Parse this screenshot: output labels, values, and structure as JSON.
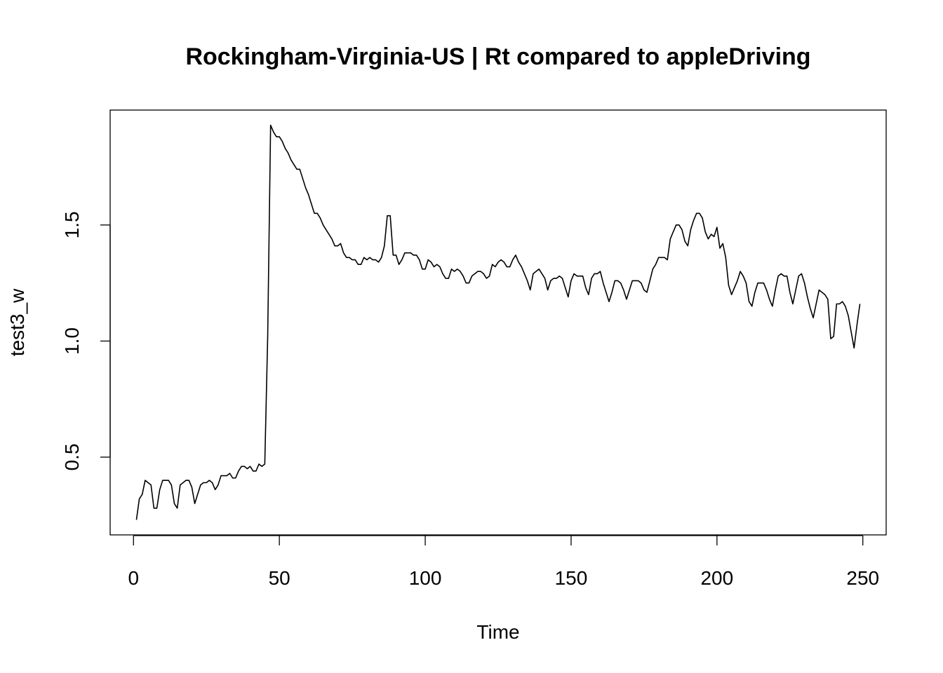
{
  "chart_data": {
    "type": "line",
    "title": "Rockingham-Virginia-US | Rt compared to appleDriving",
    "xlabel": "Time",
    "ylabel": "test3_w",
    "xlim": [
      -8,
      258
    ],
    "ylim": [
      0.165,
      1.995
    ],
    "grid": false,
    "x_ticks": [
      0,
      50,
      100,
      150,
      200,
      250
    ],
    "x_tick_labels": [
      "0",
      "50",
      "100",
      "150",
      "200",
      "250"
    ],
    "y_ticks": [
      0.5,
      1.0,
      1.5
    ],
    "y_tick_labels": [
      "0.5",
      "1.0",
      "1.5"
    ],
    "series": [
      {
        "x_start": 1,
        "values": [
          0.23,
          0.32,
          0.34,
          0.4,
          0.39,
          0.38,
          0.28,
          0.28,
          0.36,
          0.4,
          0.4,
          0.4,
          0.38,
          0.3,
          0.28,
          0.38,
          0.39,
          0.4,
          0.4,
          0.37,
          0.3,
          0.34,
          0.38,
          0.39,
          0.39,
          0.4,
          0.39,
          0.36,
          0.38,
          0.42,
          0.42,
          0.42,
          0.43,
          0.41,
          0.41,
          0.44,
          0.46,
          0.46,
          0.45,
          0.46,
          0.44,
          0.44,
          0.47,
          0.46,
          0.47,
          1.02,
          1.93,
          1.9,
          1.88,
          1.88,
          1.86,
          1.83,
          1.81,
          1.78,
          1.76,
          1.74,
          1.74,
          1.7,
          1.66,
          1.63,
          1.59,
          1.55,
          1.55,
          1.53,
          1.5,
          1.48,
          1.46,
          1.44,
          1.41,
          1.41,
          1.42,
          1.38,
          1.36,
          1.36,
          1.35,
          1.35,
          1.33,
          1.33,
          1.36,
          1.35,
          1.36,
          1.35,
          1.35,
          1.34,
          1.36,
          1.41,
          1.54,
          1.54,
          1.37,
          1.37,
          1.33,
          1.35,
          1.38,
          1.38,
          1.38,
          1.37,
          1.37,
          1.35,
          1.31,
          1.31,
          1.35,
          1.34,
          1.32,
          1.33,
          1.32,
          1.29,
          1.27,
          1.27,
          1.31,
          1.3,
          1.31,
          1.3,
          1.28,
          1.25,
          1.25,
          1.28,
          1.29,
          1.3,
          1.3,
          1.29,
          1.27,
          1.28,
          1.33,
          1.32,
          1.34,
          1.35,
          1.34,
          1.32,
          1.32,
          1.35,
          1.37,
          1.34,
          1.32,
          1.29,
          1.26,
          1.22,
          1.29,
          1.3,
          1.31,
          1.29,
          1.27,
          1.22,
          1.26,
          1.27,
          1.27,
          1.28,
          1.27,
          1.23,
          1.19,
          1.26,
          1.29,
          1.28,
          1.28,
          1.28,
          1.23,
          1.2,
          1.27,
          1.29,
          1.29,
          1.3,
          1.25,
          1.21,
          1.17,
          1.21,
          1.26,
          1.26,
          1.25,
          1.22,
          1.18,
          1.22,
          1.26,
          1.26,
          1.26,
          1.25,
          1.22,
          1.21,
          1.26,
          1.31,
          1.33,
          1.36,
          1.36,
          1.36,
          1.35,
          1.44,
          1.47,
          1.5,
          1.5,
          1.48,
          1.43,
          1.41,
          1.48,
          1.52,
          1.55,
          1.55,
          1.53,
          1.47,
          1.44,
          1.46,
          1.45,
          1.49,
          1.4,
          1.42,
          1.36,
          1.24,
          1.2,
          1.23,
          1.26,
          1.3,
          1.28,
          1.25,
          1.17,
          1.15,
          1.21,
          1.25,
          1.25,
          1.25,
          1.22,
          1.18,
          1.15,
          1.22,
          1.28,
          1.29,
          1.28,
          1.28,
          1.21,
          1.16,
          1.22,
          1.28,
          1.29,
          1.25,
          1.19,
          1.14,
          1.1,
          1.16,
          1.22,
          1.21,
          1.2,
          1.18,
          1.01,
          1.02,
          1.16,
          1.16,
          1.17,
          1.15,
          1.11,
          1.04,
          0.97,
          1.07,
          1.16
        ]
      }
    ]
  }
}
